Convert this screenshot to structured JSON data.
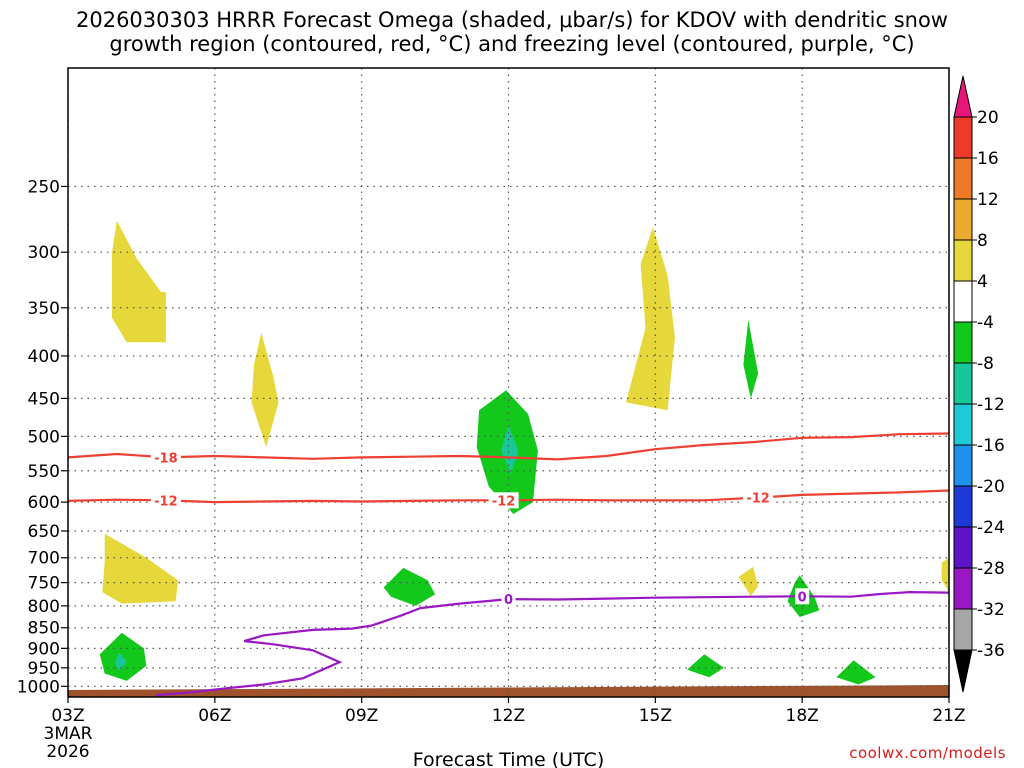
{
  "title_line1": "2026030303 HRRR Forecast Omega (shaded, μbar/s) for KDOV with dendritic snow",
  "title_line2": "growth region (contoured, red, °C) and freezing level (contoured, purple, °C)",
  "credit": "coolwx.com/models",
  "chart_data": {
    "type": "time-height cross section",
    "title": "2026030303 HRRR Forecast Omega (shaded, μbar/s) for KDOV with dendritic snow growth region (contoured, red, °C) and freezing level (contoured, purple, °C)",
    "xlabel": "Forecast Time (UTC)",
    "ylabel": "",
    "x_axis": {
      "range_hours": [
        3,
        21
      ],
      "ticks": [
        {
          "hour": 3,
          "label": "03Z",
          "sublabel": [
            "3MAR",
            "2026"
          ]
        },
        {
          "hour": 6,
          "label": "06Z"
        },
        {
          "hour": 9,
          "label": "09Z"
        },
        {
          "hour": 12,
          "label": "12Z"
        },
        {
          "hour": 15,
          "label": "15Z"
        },
        {
          "hour": 18,
          "label": "18Z"
        },
        {
          "hour": 21,
          "label": "21Z"
        }
      ]
    },
    "y_axis": {
      "units": "hPa",
      "range": [
        1030,
        180
      ],
      "scale": "log-pressure",
      "ticks": [
        250,
        300,
        350,
        400,
        450,
        500,
        550,
        600,
        650,
        700,
        750,
        800,
        850,
        900,
        950,
        1000
      ]
    },
    "grid": true,
    "colorbar": {
      "position": "right",
      "labels": [
        "20",
        "16",
        "12",
        "8",
        "4",
        "-4",
        "-8",
        "-12",
        "-16",
        "-20",
        "-24",
        "-28",
        "-32",
        "-36"
      ],
      "bins": [
        {
          "lo": 20,
          "hi": null,
          "color": "#e8157a"
        },
        {
          "lo": 16,
          "hi": 20,
          "color": "#ee3a2a"
        },
        {
          "lo": 12,
          "hi": 16,
          "color": "#ee7a28"
        },
        {
          "lo": 8,
          "hi": 12,
          "color": "#ecaa2f"
        },
        {
          "lo": 4,
          "hi": 8,
          "color": "#e6d83a"
        },
        {
          "lo": -4,
          "hi": 4,
          "color": "#ffffff"
        },
        {
          "lo": -8,
          "hi": -4,
          "color": "#12c81a"
        },
        {
          "lo": -12,
          "hi": -8,
          "color": "#17c79a"
        },
        {
          "lo": -16,
          "hi": -12,
          "color": "#1ecad6"
        },
        {
          "lo": -20,
          "hi": -16,
          "color": "#1e90ee"
        },
        {
          "lo": -24,
          "hi": -20,
          "color": "#1d3ad8"
        },
        {
          "lo": -28,
          "hi": -24,
          "color": "#5d14c6"
        },
        {
          "lo": -32,
          "hi": -28,
          "color": "#9a17c4"
        },
        {
          "lo": -36,
          "hi": -32,
          "color": "#a6a6a6"
        },
        {
          "lo": null,
          "hi": -36,
          "color": "#000000"
        }
      ]
    },
    "omega_regions": [
      {
        "sign": "upward",
        "bin": "4 to 8",
        "color": "#e6d83a",
        "points": [
          [
            4.0,
            275
          ],
          [
            4.4,
            305
          ],
          [
            4.9,
            335
          ],
          [
            5.0,
            335
          ],
          [
            5.0,
            385
          ],
          [
            4.2,
            385
          ],
          [
            3.9,
            360
          ],
          [
            3.9,
            300
          ]
        ]
      },
      {
        "sign": "upward",
        "bin": "4 to 8",
        "color": "#e6d83a",
        "points": [
          [
            6.95,
            375
          ],
          [
            7.2,
            425
          ],
          [
            7.3,
            455
          ],
          [
            7.05,
            515
          ],
          [
            6.75,
            455
          ],
          [
            6.8,
            410
          ]
        ]
      },
      {
        "sign": "upward",
        "bin": "4 to 8",
        "color": "#e6d83a",
        "points": [
          [
            14.95,
            280
          ],
          [
            15.25,
            320
          ],
          [
            15.4,
            380
          ],
          [
            15.25,
            465
          ],
          [
            14.4,
            455
          ],
          [
            14.8,
            370
          ],
          [
            14.7,
            310
          ]
        ]
      },
      {
        "sign": "upward",
        "bin": "4 to 8",
        "color": "#e6d83a",
        "points": [
          [
            3.75,
            655
          ],
          [
            4.6,
            700
          ],
          [
            5.25,
            745
          ],
          [
            5.2,
            790
          ],
          [
            4.1,
            795
          ],
          [
            3.7,
            770
          ],
          [
            3.75,
            710
          ]
        ]
      },
      {
        "sign": "upward",
        "bin": "4 to 8",
        "color": "#e6d83a",
        "points": [
          [
            16.7,
            738
          ],
          [
            17.0,
            718
          ],
          [
            17.1,
            758
          ],
          [
            16.95,
            778
          ]
        ]
      },
      {
        "sign": "upward",
        "bin": "4 to 8",
        "color": "#e6d83a",
        "points": [
          [
            20.85,
            710
          ],
          [
            21.0,
            700
          ],
          [
            21.0,
            770
          ],
          [
            20.85,
            745
          ]
        ]
      },
      {
        "sign": "downward",
        "bin": "-8 to -4",
        "color": "#12c81a",
        "points": [
          [
            16.9,
            362
          ],
          [
            17.1,
            420
          ],
          [
            16.95,
            450
          ],
          [
            16.8,
            410
          ]
        ]
      },
      {
        "sign": "downward",
        "bin": "-8 to -4",
        "color": "#12c81a",
        "points": [
          [
            11.95,
            440
          ],
          [
            12.4,
            470
          ],
          [
            12.6,
            520
          ],
          [
            12.5,
            600
          ],
          [
            12.1,
            620
          ],
          [
            11.6,
            575
          ],
          [
            11.35,
            515
          ],
          [
            11.4,
            465
          ]
        ]
      },
      {
        "sign": "downward",
        "bin": "-12 to -8",
        "color": "#17c79a",
        "points": [
          [
            12.0,
            485
          ],
          [
            12.2,
            520
          ],
          [
            12.05,
            555
          ],
          [
            11.85,
            520
          ]
        ]
      },
      {
        "sign": "downward",
        "bin": "-8 to -4",
        "color": "#12c81a",
        "points": [
          [
            9.85,
            720
          ],
          [
            10.35,
            745
          ],
          [
            10.5,
            775
          ],
          [
            10.1,
            800
          ],
          [
            9.6,
            780
          ],
          [
            9.45,
            760
          ]
        ]
      },
      {
        "sign": "downward",
        "bin": "-8 to -4",
        "color": "#12c81a",
        "points": [
          [
            17.95,
            735
          ],
          [
            18.25,
            780
          ],
          [
            18.35,
            810
          ],
          [
            17.95,
            825
          ],
          [
            17.7,
            790
          ],
          [
            17.85,
            750
          ]
        ]
      },
      {
        "sign": "downward",
        "bin": "-8 to -4",
        "color": "#12c81a",
        "points": [
          [
            4.1,
            862
          ],
          [
            4.55,
            900
          ],
          [
            4.6,
            945
          ],
          [
            4.2,
            985
          ],
          [
            3.75,
            965
          ],
          [
            3.65,
            915
          ]
        ]
      },
      {
        "sign": "downward",
        "bin": "-12 to -8",
        "color": "#17c79a",
        "points": [
          [
            4.05,
            910
          ],
          [
            4.2,
            935
          ],
          [
            4.05,
            958
          ],
          [
            3.95,
            935
          ]
        ]
      },
      {
        "sign": "downward",
        "bin": "-8 to -4",
        "color": "#12c81a",
        "points": [
          [
            16.0,
            915
          ],
          [
            16.4,
            950
          ],
          [
            16.1,
            975
          ],
          [
            15.65,
            955
          ]
        ]
      },
      {
        "sign": "downward",
        "bin": "-8 to -4",
        "color": "#12c81a",
        "points": [
          [
            19.05,
            930
          ],
          [
            19.5,
            975
          ],
          [
            19.15,
            995
          ],
          [
            18.7,
            975
          ]
        ]
      }
    ],
    "dendritic_contours": [
      {
        "name": "-18",
        "color": "#ee3f33",
        "label_hour": 5.0,
        "points": [
          [
            3,
            530
          ],
          [
            4,
            525
          ],
          [
            5,
            530
          ],
          [
            6,
            528
          ],
          [
            7,
            530
          ],
          [
            8,
            532
          ],
          [
            9,
            530
          ],
          [
            10,
            529
          ],
          [
            11,
            528
          ],
          [
            12,
            530
          ],
          [
            13,
            533
          ],
          [
            14,
            528
          ],
          [
            15,
            518
          ],
          [
            16,
            512
          ],
          [
            17,
            508
          ],
          [
            18,
            502
          ],
          [
            19,
            501
          ],
          [
            20,
            497
          ],
          [
            21,
            496
          ]
        ]
      },
      {
        "name": "-12",
        "color": "#ee3f33",
        "label_hours": [
          5.0,
          11.9,
          17.1
        ],
        "points": [
          [
            3,
            598
          ],
          [
            4,
            596
          ],
          [
            5,
            597
          ],
          [
            6,
            600
          ],
          [
            7,
            599
          ],
          [
            8,
            598
          ],
          [
            9,
            599
          ],
          [
            10,
            598
          ],
          [
            11,
            597
          ],
          [
            12,
            597
          ],
          [
            13,
            596
          ],
          [
            14,
            597
          ],
          [
            15,
            597
          ],
          [
            16,
            597
          ],
          [
            17,
            593
          ],
          [
            18,
            588
          ],
          [
            19,
            586
          ],
          [
            20,
            584
          ],
          [
            21,
            581
          ]
        ]
      }
    ],
    "freezing_level_contour": {
      "name": "0",
      "color": "#9a17c4",
      "label_hours": [
        12.0,
        18.0
      ],
      "points": [
        [
          4.8,
          1025
        ],
        [
          5.5,
          1017
        ],
        [
          6.2,
          1006
        ],
        [
          7.0,
          995
        ],
        [
          7.8,
          978
        ],
        [
          8.55,
          935
        ],
        [
          8.0,
          905
        ],
        [
          7.2,
          890
        ],
        [
          6.6,
          882
        ],
        [
          7.0,
          868
        ],
        [
          8.0,
          855
        ],
        [
          8.8,
          852
        ],
        [
          9.2,
          845
        ],
        [
          9.8,
          822
        ],
        [
          10.2,
          805
        ],
        [
          11.0,
          795
        ],
        [
          12.0,
          785
        ],
        [
          13.0,
          786
        ],
        [
          14.0,
          784
        ],
        [
          15.0,
          782
        ],
        [
          16.0,
          781
        ],
        [
          17.0,
          780
        ],
        [
          18.0,
          779
        ],
        [
          19.0,
          780
        ],
        [
          19.6,
          774
        ],
        [
          20.2,
          770
        ],
        [
          21.0,
          771
        ]
      ]
    },
    "ground_band": {
      "color": "#a0522d"
    }
  }
}
